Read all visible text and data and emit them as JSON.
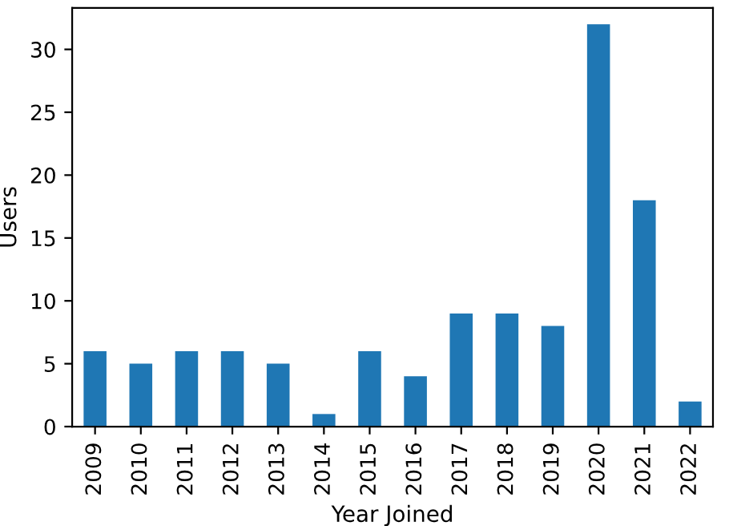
{
  "chart_data": {
    "type": "bar",
    "xlabel": "Year Joined",
    "ylabel": "Users",
    "categories": [
      "2009",
      "2010",
      "2011",
      "2012",
      "2013",
      "2014",
      "2015",
      "2016",
      "2017",
      "2018",
      "2019",
      "2020",
      "2021",
      "2022"
    ],
    "values": [
      6,
      5,
      6,
      6,
      5,
      1,
      6,
      4,
      9,
      9,
      8,
      32,
      18,
      2
    ],
    "color": "#1f77b4",
    "ylim": [
      0,
      33.3
    ],
    "yticks": [
      0,
      5,
      10,
      15,
      20,
      25,
      30
    ],
    "grid": false,
    "legend": false
  }
}
